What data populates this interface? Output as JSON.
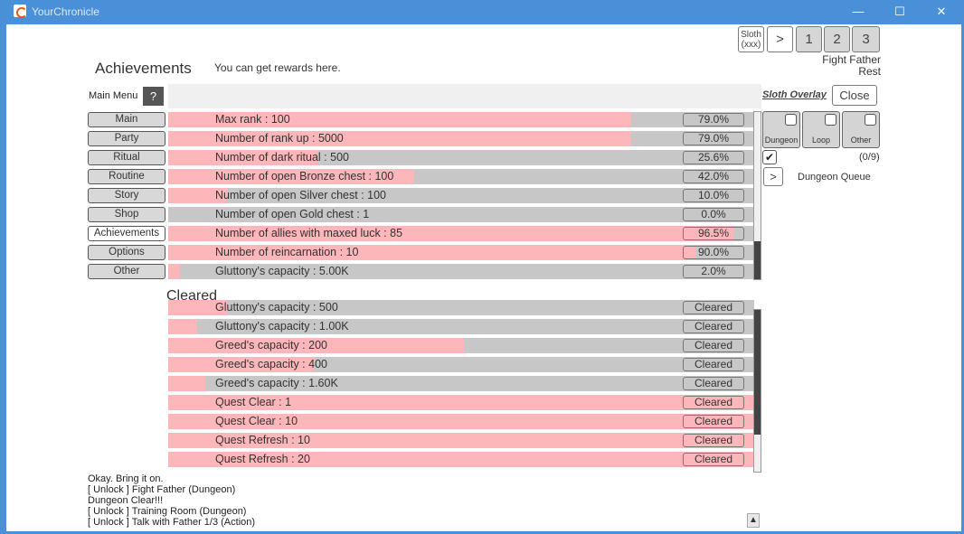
{
  "window": {
    "title": "YourChronicle",
    "minimize": "—",
    "maximize": "☐",
    "close": "✕"
  },
  "header": {
    "title": "Achievements",
    "subtitle": "You can get rewards here.",
    "cleared_heading": "Cleared"
  },
  "top_controls": {
    "sloth_btn_line1": "Sloth",
    "sloth_btn_line2": "(xxx)",
    "next": ">",
    "slots": [
      "1",
      "2",
      "3"
    ],
    "action_line1": "Fight Father",
    "action_line2": "Rest"
  },
  "sidebar": {
    "main_menu_label": "Main Menu",
    "help": "?",
    "items": [
      {
        "label": "Main",
        "active": false
      },
      {
        "label": "Party",
        "active": false
      },
      {
        "label": "Ritual",
        "active": false
      },
      {
        "label": "Routine",
        "active": false
      },
      {
        "label": "Story",
        "active": false
      },
      {
        "label": "Shop",
        "active": false
      },
      {
        "label": "Achievements",
        "active": true
      },
      {
        "label": "Options",
        "active": false
      },
      {
        "label": "Other",
        "active": false
      }
    ]
  },
  "achievements": [
    {
      "label": "Max rank : 100",
      "progress": 0.79,
      "value": "79.0%"
    },
    {
      "label": "Number of rank up : 5000",
      "progress": 0.79,
      "value": "79.0%"
    },
    {
      "label": "Number of dark ritual : 500",
      "progress": 0.256,
      "value": "25.6%"
    },
    {
      "label": "Number of open Bronze chest : 100",
      "progress": 0.42,
      "value": "42.0%"
    },
    {
      "label": "Number of open Silver chest : 100",
      "progress": 0.1,
      "value": "10.0%"
    },
    {
      "label": "Number of open Gold chest : 1",
      "progress": 0.0,
      "value": "0.0%"
    },
    {
      "label": "Number of allies with maxed luck : 85",
      "progress": 0.965,
      "value": "96.5%"
    },
    {
      "label": "Number of reincarnation : 10",
      "progress": 0.9,
      "value": "90.0%"
    },
    {
      "label": "Gluttony's capacity : 5.00K",
      "progress": 0.02,
      "value": "2.0%"
    }
  ],
  "cleared": [
    {
      "label": "Gluttony's capacity : 500",
      "progress": 0.1,
      "value": "Cleared"
    },
    {
      "label": "Gluttony's capacity : 1.00K",
      "progress": 0.05,
      "value": "Cleared"
    },
    {
      "label": "Greed's capacity : 200",
      "progress": 0.505,
      "value": "Cleared"
    },
    {
      "label": "Greed's capacity : 400",
      "progress": 0.25,
      "value": "Cleared"
    },
    {
      "label": "Greed's capacity : 1.60K",
      "progress": 0.064,
      "value": "Cleared"
    },
    {
      "label": "Quest Clear : 1",
      "progress": 1.0,
      "value": "Cleared"
    },
    {
      "label": "Quest Clear : 10",
      "progress": 1.0,
      "value": "Cleared"
    },
    {
      "label": "Quest Refresh : 10",
      "progress": 1.0,
      "value": "Cleared"
    },
    {
      "label": "Quest Refresh : 20",
      "progress": 1.0,
      "value": "Cleared"
    }
  ],
  "overlay": {
    "title": "Sloth Overlay",
    "close": "Close",
    "toggles": [
      {
        "label": "Dungeon",
        "checked": false
      },
      {
        "label": "Loop",
        "checked": false
      },
      {
        "label": "Other",
        "checked": false
      }
    ],
    "queue_count": "(0/9)",
    "queue_next": ">",
    "queue_label": "Dungeon Queue"
  },
  "log": [
    "Okay. Bring it on.",
    "[ Unlock ] Fight Father (Dungeon)",
    "Dungeon Clear!!!",
    "[ Unlock ] Training Room (Dungeon)",
    "[ Unlock ] Talk with Father 1/3 (Action)"
  ],
  "log_scroll_icon": "▲"
}
